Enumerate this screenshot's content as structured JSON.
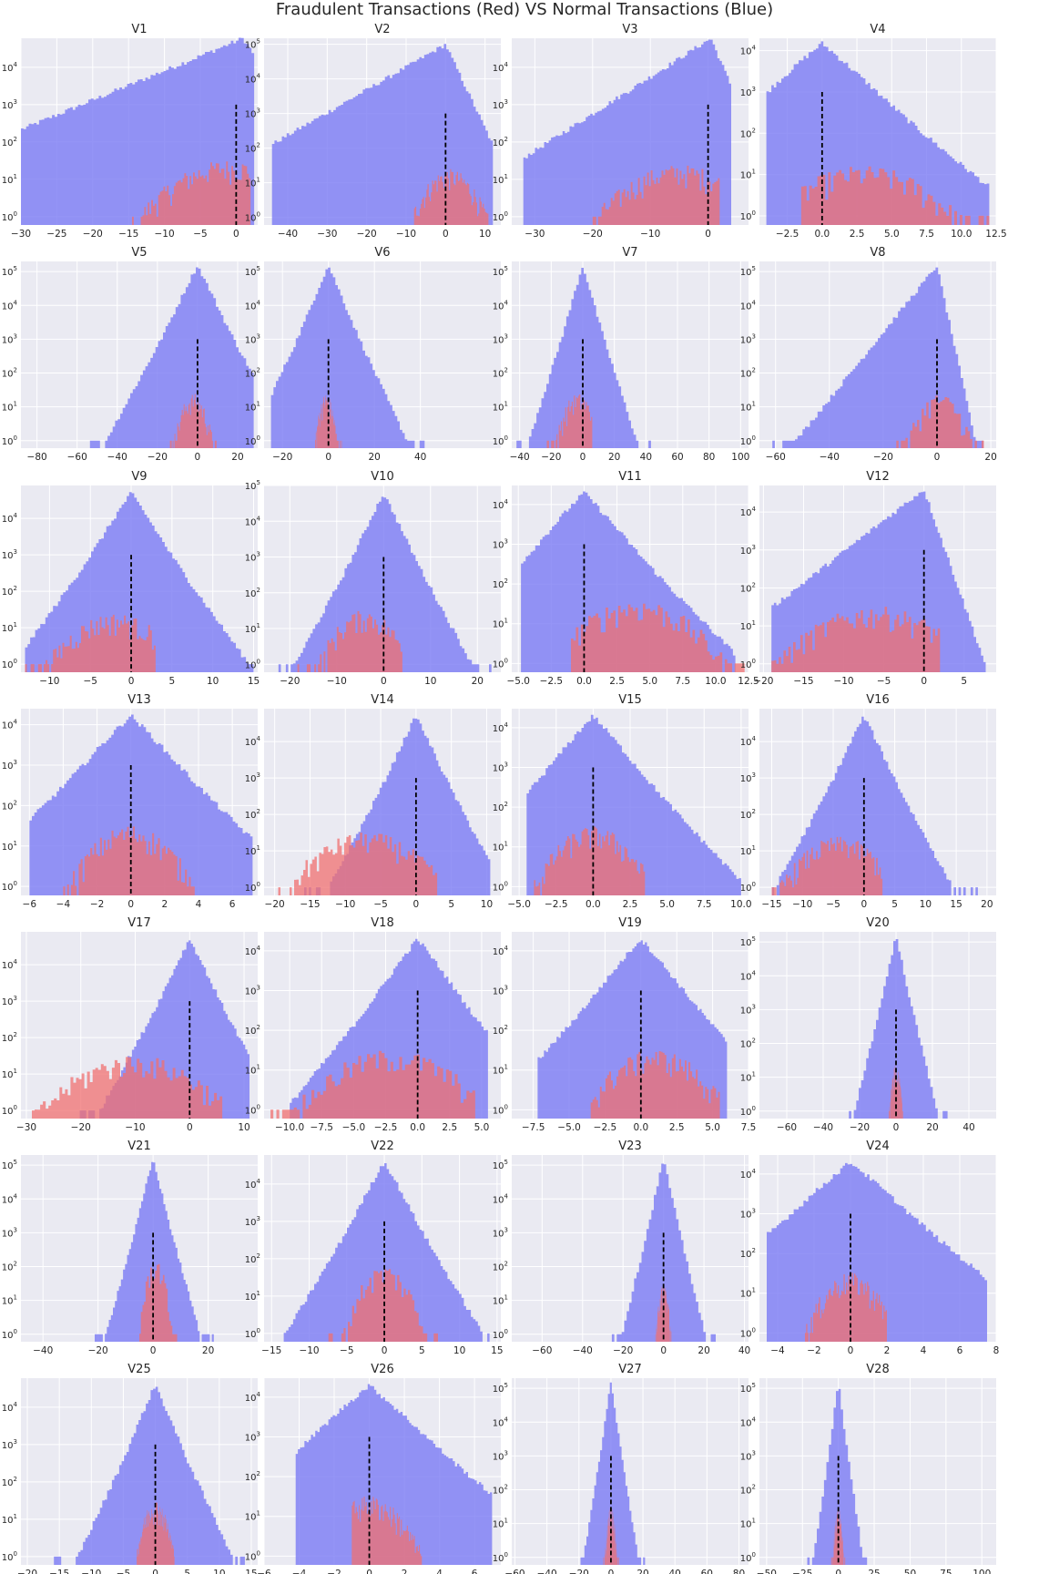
{
  "figure": {
    "suptitle": "Fraudulent Transactions (Red) VS Normal Transactions (Blue)"
  },
  "colors": {
    "background": "#EAEAF2",
    "grid": "#ffffff",
    "normal": "#7B7BF4",
    "fraud": "#F07070",
    "overlap": "#C4509A",
    "mean_line": "#000000"
  },
  "chart_data": [
    {
      "type": "bar",
      "title": "V1",
      "xlim": [
        -30,
        3
      ],
      "xticks": [
        -30,
        -25,
        -20,
        -15,
        -10,
        -5,
        0
      ],
      "ylim": [
        0.6,
        60000
      ],
      "yscale": "log",
      "normal": {
        "shape": "left",
        "peak": 1,
        "peakValue": 60000,
        "support": [
          -30,
          2.5
        ],
        "spread": 2.5
      },
      "fraud": {
        "shape": "wide",
        "peak": -1,
        "peakValue": 20,
        "support": [
          -15,
          2
        ],
        "spread": 5
      },
      "mean_x": 0
    },
    {
      "type": "bar",
      "title": "V2",
      "xlim": [
        -46,
        14
      ],
      "xticks": [
        -40,
        -30,
        -20,
        -10,
        0,
        10
      ],
      "ylim": [
        0.6,
        150000
      ],
      "yscale": "log",
      "normal": {
        "shape": "left",
        "peak": 0,
        "peakValue": 100000,
        "support": [
          -44,
          12
        ],
        "spread": 3
      },
      "fraud": {
        "shape": "wide",
        "peak": 1,
        "peakValue": 15,
        "support": [
          -8,
          12
        ],
        "spread": 4
      },
      "mean_x": 0
    },
    {
      "type": "bar",
      "title": "V3",
      "xlim": [
        -34,
        7
      ],
      "xticks": [
        -30,
        -20,
        -10,
        0
      ],
      "ylim": [
        0.6,
        60000
      ],
      "yscale": "log",
      "normal": {
        "shape": "left",
        "peak": 0.5,
        "peakValue": 60000,
        "support": [
          -32,
          4
        ],
        "spread": 2
      },
      "fraud": {
        "shape": "wide",
        "peak": -5,
        "peakValue": 15,
        "support": [
          -20,
          2
        ],
        "spread": 6
      },
      "mean_x": 0
    },
    {
      "type": "bar",
      "title": "V4",
      "xlim": [
        -4.5,
        12.5
      ],
      "xticks": [
        -2.5,
        0.0,
        2.5,
        5.0,
        7.5,
        10.0,
        12.5
      ],
      "ylim": [
        0.6,
        20000
      ],
      "yscale": "log",
      "normal": {
        "shape": "gauss",
        "peak": 0,
        "peakValue": 15000,
        "support": [
          -4,
          12
        ],
        "spread": 1.6
      },
      "fraud": {
        "shape": "wide",
        "peak": 3,
        "peakValue": 10,
        "support": [
          -1.5,
          12
        ],
        "spread": 3
      },
      "mean_x": 0
    },
    {
      "type": "bar",
      "title": "V5",
      "xlim": [
        -88,
        30
      ],
      "xticks": [
        -80,
        -60,
        -40,
        -20,
        0,
        20
      ],
      "ylim": [
        0.6,
        200000
      ],
      "yscale": "log",
      "normal": {
        "shape": "gauss",
        "peak": 0,
        "peakValue": 150000,
        "support": [
          -85,
          28
        ],
        "spread": 4
      },
      "fraud": {
        "shape": "wide",
        "peak": -2,
        "peakValue": 15,
        "support": [
          -22,
          10
        ],
        "spread": 4
      },
      "mean_x": 0
    },
    {
      "type": "bar",
      "title": "V6",
      "xlim": [
        -28,
        75
      ],
      "xticks": [
        -20,
        0,
        20,
        40
      ],
      "ylim": [
        0.6,
        200000
      ],
      "yscale": "log",
      "normal": {
        "shape": "gauss",
        "peak": 0,
        "peakValue": 150000,
        "support": [
          -25,
          72
        ],
        "spread": 3
      },
      "fraud": {
        "shape": "wide",
        "peak": -1,
        "peakValue": 15,
        "support": [
          -6,
          6
        ],
        "spread": 2
      },
      "mean_x": 0
    },
    {
      "type": "bar",
      "title": "V7",
      "xlim": [
        -45,
        105
      ],
      "xticks": [
        -40,
        -20,
        0,
        20,
        40,
        60,
        80,
        100
      ],
      "ylim": [
        0.6,
        200000
      ],
      "yscale": "log",
      "normal": {
        "shape": "gauss",
        "peak": 0,
        "peakValue": 150000,
        "support": [
          -42,
          100
        ],
        "spread": 3
      },
      "fraud": {
        "shape": "wide",
        "peak": -3,
        "peakValue": 15,
        "support": [
          -42,
          6
        ],
        "spread": 6
      },
      "mean_x": 0
    },
    {
      "type": "bar",
      "title": "V8",
      "xlim": [
        -66,
        22
      ],
      "xticks": [
        -60,
        -40,
        -20,
        0,
        20
      ],
      "ylim": [
        0.6,
        200000
      ],
      "yscale": "log",
      "normal": {
        "shape": "left",
        "peak": 0,
        "peakValue": 150000,
        "support": [
          -64,
          20
        ],
        "spread": 2
      },
      "fraud": {
        "shape": "wide",
        "peak": 1,
        "peakValue": 15,
        "support": [
          -40,
          20
        ],
        "spread": 5
      },
      "mean_x": 0
    },
    {
      "type": "bar",
      "title": "V9",
      "xlim": [
        -13.5,
        15.5
      ],
      "xticks": [
        -10,
        -5,
        0,
        5,
        10,
        15
      ],
      "ylim": [
        0.6,
        80000
      ],
      "yscale": "log",
      "normal": {
        "shape": "gauss",
        "peak": 0,
        "peakValue": 50000,
        "support": [
          -13,
          15
        ],
        "spread": 1.4
      },
      "fraud": {
        "shape": "wide",
        "peak": -2,
        "peakValue": 15,
        "support": [
          -13,
          3
        ],
        "spread": 3.5
      },
      "mean_x": 0
    },
    {
      "type": "bar",
      "title": "V10",
      "xlim": [
        -25.5,
        25
      ],
      "xticks": [
        -20,
        -10,
        0,
        10,
        20
      ],
      "ylim": [
        0.6,
        100000
      ],
      "yscale": "log",
      "normal": {
        "shape": "gauss",
        "peak": 0,
        "peakValue": 60000,
        "support": [
          -24,
          23
        ],
        "spread": 1.8
      },
      "fraud": {
        "shape": "wide",
        "peak": -4,
        "peakValue": 20,
        "support": [
          -24,
          4
        ],
        "spread": 4
      },
      "mean_x": 0
    },
    {
      "type": "bar",
      "title": "V11",
      "xlim": [
        -5.5,
        12.5
      ],
      "xticks": [
        -5.0,
        -2.5,
        0.0,
        2.5,
        5.0,
        7.5,
        10.0,
        12.5
      ],
      "ylim": [
        0.6,
        30000
      ],
      "yscale": "log",
      "normal": {
        "shape": "gauss",
        "peak": 0,
        "peakValue": 20000,
        "support": [
          -4.8,
          11.5
        ],
        "spread": 1.3
      },
      "fraud": {
        "shape": "wide",
        "peak": 4,
        "peakValue": 25,
        "support": [
          -1,
          12.2
        ],
        "spread": 2.6
      },
      "mean_x": 0
    },
    {
      "type": "bar",
      "title": "V12",
      "xlim": [
        -20.5,
        9
      ],
      "xticks": [
        -20,
        -15,
        -10,
        -5,
        0,
        5
      ],
      "ylim": [
        0.6,
        50000
      ],
      "yscale": "log",
      "normal": {
        "shape": "left",
        "peak": 0,
        "peakValue": 40000,
        "support": [
          -19,
          8
        ],
        "spread": 1.2
      },
      "fraud": {
        "shape": "wide",
        "peak": -6,
        "peakValue": 20,
        "support": [
          -19,
          2
        ],
        "spread": 5
      },
      "mean_x": 0
    },
    {
      "type": "bar",
      "title": "V13",
      "xlim": [
        -6.5,
        7.5
      ],
      "xticks": [
        -6,
        -4,
        -2,
        0,
        2,
        4,
        6
      ],
      "ylim": [
        0.6,
        25000
      ],
      "yscale": "log",
      "normal": {
        "shape": "gauss",
        "peak": 0,
        "peakValue": 17000,
        "support": [
          -6,
          7.2
        ],
        "spread": 1.1
      },
      "fraud": {
        "shape": "wide",
        "peak": 0,
        "peakValue": 20,
        "support": [
          -4,
          4
        ],
        "spread": 1.5
      },
      "mean_x": 0
    },
    {
      "type": "bar",
      "title": "V14",
      "xlim": [
        -21.5,
        12
      ],
      "xticks": [
        -20,
        -15,
        -10,
        -5,
        0,
        5,
        10
      ],
      "ylim": [
        0.6,
        80000
      ],
      "yscale": "log",
      "normal": {
        "shape": "gauss",
        "peak": 0,
        "peakValue": 50000,
        "support": [
          -19.5,
          10.5
        ],
        "spread": 1.2
      },
      "fraud": {
        "shape": "wide",
        "peak": -7,
        "peakValue": 20,
        "support": [
          -19.5,
          3
        ],
        "spread": 4.5
      },
      "mean_x": 0
    },
    {
      "type": "bar",
      "title": "V15",
      "xlim": [
        -5.5,
        10.5
      ],
      "xticks": [
        -5.0,
        -2.5,
        0.0,
        2.5,
        5.0,
        7.5,
        10.0
      ],
      "ylim": [
        0.6,
        30000
      ],
      "yscale": "log",
      "normal": {
        "shape": "gauss",
        "peak": 0,
        "peakValue": 20000,
        "support": [
          -4.5,
          10
        ],
        "spread": 1.1
      },
      "fraud": {
        "shape": "wide",
        "peak": 0,
        "peakValue": 20,
        "support": [
          -4,
          3.5
        ],
        "spread": 1.6
      },
      "mean_x": 0
    },
    {
      "type": "bar",
      "title": "V16",
      "xlim": [
        -17,
        21.5
      ],
      "xticks": [
        -15,
        -10,
        -5,
        0,
        5,
        10,
        15,
        20
      ],
      "ylim": [
        0.6,
        80000
      ],
      "yscale": "log",
      "normal": {
        "shape": "gauss",
        "peak": 0,
        "peakValue": 50000,
        "support": [
          -15,
          20.5
        ],
        "spread": 1.4
      },
      "fraud": {
        "shape": "wide",
        "peak": -4,
        "peakValue": 15,
        "support": [
          -15,
          3
        ],
        "spread": 4
      },
      "mean_x": 0
    },
    {
      "type": "bar",
      "title": "V17",
      "xlim": [
        -31,
        12.5
      ],
      "xticks": [
        -30,
        -20,
        -10,
        0,
        10
      ],
      "ylim": [
        0.6,
        80000
      ],
      "yscale": "log",
      "normal": {
        "shape": "gauss",
        "peak": 0,
        "peakValue": 50000,
        "support": [
          -25,
          11
        ],
        "spread": 1.6
      },
      "fraud": {
        "shape": "wide",
        "peak": -10,
        "peakValue": 20,
        "support": [
          -29.5,
          6
        ],
        "spread": 7
      },
      "mean_x": 0
    },
    {
      "type": "bar",
      "title": "V18",
      "xlim": [
        -12,
        6.5
      ],
      "xticks": [
        -10.0,
        -7.5,
        -5.0,
        -2.5,
        0.0,
        2.5,
        5.0
      ],
      "ylim": [
        0.6,
        30000
      ],
      "yscale": "log",
      "normal": {
        "shape": "gauss",
        "peak": 0,
        "peakValue": 20000,
        "support": [
          -10,
          5.5
        ],
        "spread": 1.1
      },
      "fraud": {
        "shape": "wide",
        "peak": -2,
        "peakValue": 20,
        "support": [
          -11.5,
          4.5
        ],
        "spread": 3
      },
      "mean_x": 0
    },
    {
      "type": "bar",
      "title": "V19",
      "xlim": [
        -9,
        7.5
      ],
      "xticks": [
        -7.5,
        -5.0,
        -2.5,
        0.0,
        2.5,
        5.0,
        7.5
      ],
      "ylim": [
        0.6,
        30000
      ],
      "yscale": "log",
      "normal": {
        "shape": "gauss",
        "peak": 0,
        "peakValue": 20000,
        "support": [
          -7.2,
          6
        ],
        "spread": 1.1
      },
      "fraud": {
        "shape": "wide",
        "peak": 1,
        "peakValue": 20,
        "support": [
          -3.5,
          5.5
        ],
        "spread": 2
      },
      "mean_x": 0
    },
    {
      "type": "bar",
      "title": "V20",
      "xlim": [
        -75,
        55
      ],
      "xticks": [
        -60,
        -40,
        -20,
        0,
        20,
        40
      ],
      "ylim": [
        0.6,
        200000
      ],
      "yscale": "log",
      "normal": {
        "shape": "gauss",
        "peak": 0,
        "peakValue": 150000,
        "support": [
          -72,
          50
        ],
        "spread": 2
      },
      "fraud": {
        "shape": "wide",
        "peak": 0,
        "peakValue": 15,
        "support": [
          -4,
          4
        ],
        "spread": 1.5
      },
      "mean_x": 0
    },
    {
      "type": "bar",
      "title": "V21",
      "xlim": [
        -48,
        38
      ],
      "xticks": [
        -40,
        -20,
        0,
        20
      ],
      "ylim": [
        0.6,
        200000
      ],
      "yscale": "log",
      "normal": {
        "shape": "gauss",
        "peak": 0,
        "peakValue": 150000,
        "support": [
          -30,
          36
        ],
        "spread": 1.5
      },
      "fraud": {
        "shape": "wide",
        "peak": 1,
        "peakValue": 100,
        "support": [
          -5,
          35
        ],
        "spread": 2
      },
      "mean_x": 0
    },
    {
      "type": "bar",
      "title": "V22",
      "xlim": [
        -16,
        15.5
      ],
      "xticks": [
        -15,
        -10,
        -5,
        0,
        5,
        10,
        15
      ],
      "ylim": [
        0.6,
        60000
      ],
      "yscale": "log",
      "normal": {
        "shape": "gauss",
        "peak": 0,
        "peakValue": 40000,
        "support": [
          -14,
          14
        ],
        "spread": 1.3
      },
      "fraud": {
        "shape": "wide",
        "peak": 0,
        "peakValue": 40,
        "support": [
          -10,
          10
        ],
        "spread": 2
      },
      "mean_x": 0
    },
    {
      "type": "bar",
      "title": "V23",
      "xlim": [
        -75,
        42
      ],
      "xticks": [
        -60,
        -40,
        -20,
        0,
        20,
        40
      ],
      "ylim": [
        0.6,
        200000
      ],
      "yscale": "log",
      "normal": {
        "shape": "gauss",
        "peak": 0,
        "peakValue": 150000,
        "support": [
          -72,
          38
        ],
        "spread": 1.8
      },
      "fraud": {
        "shape": "wide",
        "peak": 0,
        "peakValue": 20,
        "support": [
          -4,
          4
        ],
        "spread": 1.5
      },
      "mean_x": 0
    },
    {
      "type": "bar",
      "title": "V24",
      "xlim": [
        -5,
        8
      ],
      "xticks": [
        -4,
        -2,
        0,
        2,
        4,
        6,
        8
      ],
      "ylim": [
        0.6,
        30000
      ],
      "yscale": "log",
      "normal": {
        "shape": "gauss",
        "peak": 0,
        "peakValue": 20000,
        "support": [
          -4.6,
          7.5
        ],
        "spread": 1.2
      },
      "fraud": {
        "shape": "wide",
        "peak": 0,
        "peakValue": 20,
        "support": [
          -2.5,
          2
        ],
        "spread": 1
      },
      "mean_x": 0
    },
    {
      "type": "bar",
      "title": "V25",
      "xlim": [
        -21,
        16
      ],
      "xticks": [
        -20,
        -15,
        -10,
        -5,
        0,
        5,
        10,
        15
      ],
      "ylim": [
        0.6,
        60000
      ],
      "yscale": "log",
      "normal": {
        "shape": "gauss",
        "peak": 0,
        "peakValue": 40000,
        "support": [
          -20,
          14
        ],
        "spread": 1.2
      },
      "fraud": {
        "shape": "wide",
        "peak": 0,
        "peakValue": 20,
        "support": [
          -3,
          3
        ],
        "spread": 1.2
      },
      "mean_x": 0
    },
    {
      "type": "bar",
      "title": "V26",
      "xlim": [
        -6,
        7.5
      ],
      "xticks": [
        -6,
        -4,
        -2,
        0,
        2,
        4,
        6
      ],
      "ylim": [
        0.6,
        30000
      ],
      "yscale": "log",
      "normal": {
        "shape": "gauss",
        "peak": 0,
        "peakValue": 20000,
        "support": [
          -4.2,
          7
        ],
        "spread": 1.2
      },
      "fraud": {
        "shape": "wide",
        "peak": 0,
        "peakValue": 20,
        "support": [
          -1,
          3
        ],
        "spread": 1.2
      },
      "mean_x": 0
    },
    {
      "type": "bar",
      "title": "V27",
      "xlim": [
        -62,
        86
      ],
      "xticks": [
        -60,
        -40,
        -20,
        0,
        20,
        40,
        60,
        80
      ],
      "ylim": [
        0.6,
        200000
      ],
      "yscale": "log",
      "normal": {
        "shape": "gauss",
        "peak": 0,
        "peakValue": 150000,
        "support": [
          -30,
          80
        ],
        "spread": 1.5
      },
      "fraud": {
        "shape": "wide",
        "peak": 0,
        "peakValue": 20,
        "support": [
          -5,
          5
        ],
        "spread": 1.5
      },
      "mean_x": 0
    },
    {
      "type": "bar",
      "title": "V28",
      "xlim": [
        -55,
        110
      ],
      "xticks": [
        -50,
        -25,
        0,
        25,
        50,
        75,
        100
      ],
      "ylim": [
        0.6,
        200000
      ],
      "yscale": "log",
      "normal": {
        "shape": "gauss",
        "peak": 0,
        "peakValue": 150000,
        "support": [
          -50,
          100
        ],
        "spread": 1.5
      },
      "fraud": {
        "shape": "wide",
        "peak": 0,
        "peakValue": 20,
        "support": [
          -5,
          5
        ],
        "spread": 1.5
      },
      "mean_x": 0
    }
  ]
}
